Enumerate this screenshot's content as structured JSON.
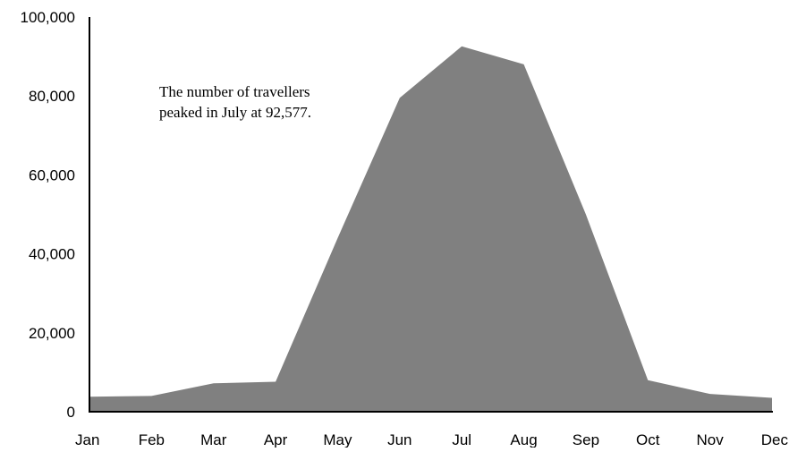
{
  "chart_data": {
    "type": "area",
    "title": "",
    "xlabel": "",
    "ylabel": "",
    "categories": [
      "Jan",
      "Feb",
      "Mar",
      "Apr",
      "May",
      "Jun",
      "Jul",
      "Aug",
      "Sep",
      "Oct",
      "Nov",
      "Dec"
    ],
    "series": [
      {
        "values": [
          3800,
          4000,
          7200,
          7600,
          44000,
          79500,
          92577,
          88000,
          50000,
          8000,
          4500,
          3500
        ]
      }
    ],
    "ylim": [
      0,
      100000
    ],
    "yticks": [
      "0",
      "20,000",
      "40,000",
      "60,000",
      "80,000",
      "100,000"
    ],
    "grid": false,
    "legend": "none",
    "colors": {
      "area": "#808080",
      "axis": "#000000",
      "text": "#000000"
    },
    "annotation": "The number of travellers peaked in July at 92,577."
  }
}
